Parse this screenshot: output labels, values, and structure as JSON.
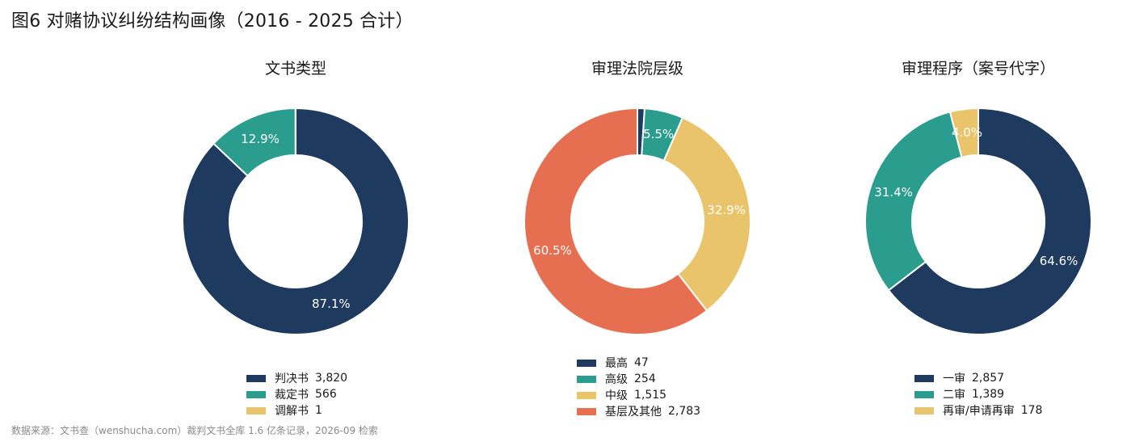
{
  "figure": {
    "title": "图6  对赌协议纠纷结构画像（2016 - 2025 合计）",
    "source": "数据来源：文书查（wenshucha.com）裁判文书全库 1.6 亿条记录，2026-09 检索"
  },
  "colors": {
    "navy": "#1f3a5f",
    "teal": "#2a9d8f",
    "gold": "#e9c46a",
    "coral": "#e76f51"
  },
  "chart_data": [
    {
      "type": "pie",
      "title": "文书类型",
      "series": [
        {
          "name": "判决书",
          "value": 3820,
          "value_label": "3,820",
          "pct_label": "87.1%",
          "color": "#1f3a5f"
        },
        {
          "name": "裁定书",
          "value": 566,
          "value_label": "566",
          "pct_label": "12.9%",
          "color": "#2a9d8f"
        },
        {
          "name": "调解书",
          "value": 1,
          "value_label": "1",
          "pct_label": "",
          "color": "#e9c46a"
        }
      ]
    },
    {
      "type": "pie",
      "title": "审理法院层级",
      "series": [
        {
          "name": "最高",
          "value": 47,
          "value_label": "47",
          "pct_label": "",
          "color": "#1f3a5f"
        },
        {
          "name": "高级",
          "value": 254,
          "value_label": "254",
          "pct_label": "5.5%",
          "color": "#2a9d8f"
        },
        {
          "name": "中级",
          "value": 1515,
          "value_label": "1,515",
          "pct_label": "32.9%",
          "color": "#e9c46a"
        },
        {
          "name": "基层及其他",
          "value": 2783,
          "value_label": "2,783",
          "pct_label": "60.5%",
          "color": "#e76f51"
        }
      ]
    },
    {
      "type": "pie",
      "title": "审理程序（案号代字）",
      "series": [
        {
          "name": "一审",
          "value": 2857,
          "value_label": "2,857",
          "pct_label": "64.6%",
          "color": "#1f3a5f"
        },
        {
          "name": "二审",
          "value": 1389,
          "value_label": "1,389",
          "pct_label": "31.4%",
          "color": "#2a9d8f"
        },
        {
          "name": "再审/申请再审",
          "value": 178,
          "value_label": "178",
          "pct_label": "4.0%",
          "color": "#e9c46a"
        }
      ]
    }
  ]
}
